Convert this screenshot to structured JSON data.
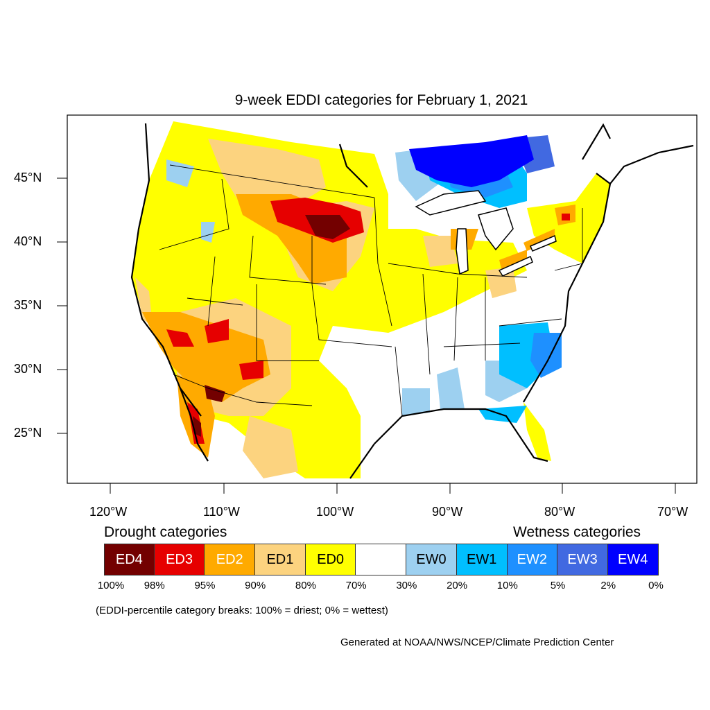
{
  "title": "9-week EDDI categories for February 1, 2021",
  "axes": {
    "lat_labels": [
      "45°N",
      "40°N",
      "35°N",
      "30°N",
      "25°N"
    ],
    "lon_labels": [
      "120°W",
      "110°W",
      "100°W",
      "90°W",
      "80°W",
      "70°W"
    ]
  },
  "legend": {
    "drought_heading": "Drought categories",
    "wetness_heading": "Wetness categories",
    "categories": [
      {
        "label": "ED4",
        "color": "#730000",
        "text_color": "#ffffff"
      },
      {
        "label": "ED3",
        "color": "#e60000",
        "text_color": "#ffffff"
      },
      {
        "label": "ED2",
        "color": "#ffaa00",
        "text_color": "#ffffff"
      },
      {
        "label": "ED1",
        "color": "#fcd37f",
        "text_color": "#000000"
      },
      {
        "label": "ED0",
        "color": "#ffff00",
        "text_color": "#000000"
      },
      {
        "label": "",
        "color": "#ffffff",
        "text_color": "#000000"
      },
      {
        "label": "EW0",
        "color": "#9dd0f0",
        "text_color": "#000000"
      },
      {
        "label": "EW1",
        "color": "#00bfff",
        "text_color": "#000000"
      },
      {
        "label": "EW2",
        "color": "#1e90ff",
        "text_color": "#ffffff"
      },
      {
        "label": "EW3",
        "color": "#4169e1",
        "text_color": "#ffffff"
      },
      {
        "label": "EW4",
        "color": "#0000ff",
        "text_color": "#ffffff"
      }
    ],
    "breaks": [
      "100%",
      "98%",
      "95%",
      "90%",
      "80%",
      "70%",
      "30%",
      "20%",
      "10%",
      "5%",
      "2%",
      "0%"
    ]
  },
  "note": "(EDDI-percentile category breaks: 100% = driest; 0% = wettest)",
  "credit": "Generated at NOAA/NWS/NCEP/Climate Prediction Center"
}
